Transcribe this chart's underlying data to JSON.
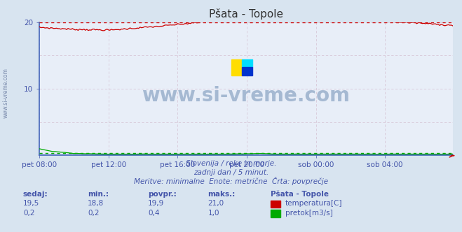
{
  "title": "Pšata - Topole",
  "bg_color": "#d8e4f0",
  "plot_bg_color": "#e8eef8",
  "grid_color_h": "#d8c8d8",
  "grid_color_v": "#d8c8d8",
  "spine_color": "#4466bb",
  "x_labels": [
    "pet 08:00",
    "pet 12:00",
    "pet 16:00",
    "pet 20:00",
    "sob 00:00",
    "sob 04:00"
  ],
  "x_ticks": [
    0,
    48,
    96,
    144,
    192,
    240
  ],
  "n_points": 288,
  "ylim": [
    0,
    20
  ],
  "y_ticks": [
    10,
    20
  ],
  "temp_color": "#cc0000",
  "flow_color": "#00aa00",
  "height_color": "#4466bb",
  "watermark_text": "www.si-vreme.com",
  "watermark_color": "#9ab0cc",
  "subtitle1": "Slovenija / reke in morje.",
  "subtitle2": "zadnji dan / 5 minut.",
  "subtitle3": "Meritve: minimalne  Enote: metrične  Črta: povprečje",
  "footer_color": "#4455aa",
  "table_header": [
    "sedaj:",
    "min.:",
    "povpr.:",
    "maks.:",
    "Pšata - Topole"
  ],
  "row1_vals": [
    "19,5",
    "18,8",
    "19,9",
    "21,0"
  ],
  "row1_label": "temperatura[C]",
  "row2_vals": [
    "0,2",
    "0,2",
    "0,4",
    "1,0"
  ],
  "row2_label": "pretok[m3/s]",
  "temp_avg": 19.9,
  "flow_avg": 0.4
}
